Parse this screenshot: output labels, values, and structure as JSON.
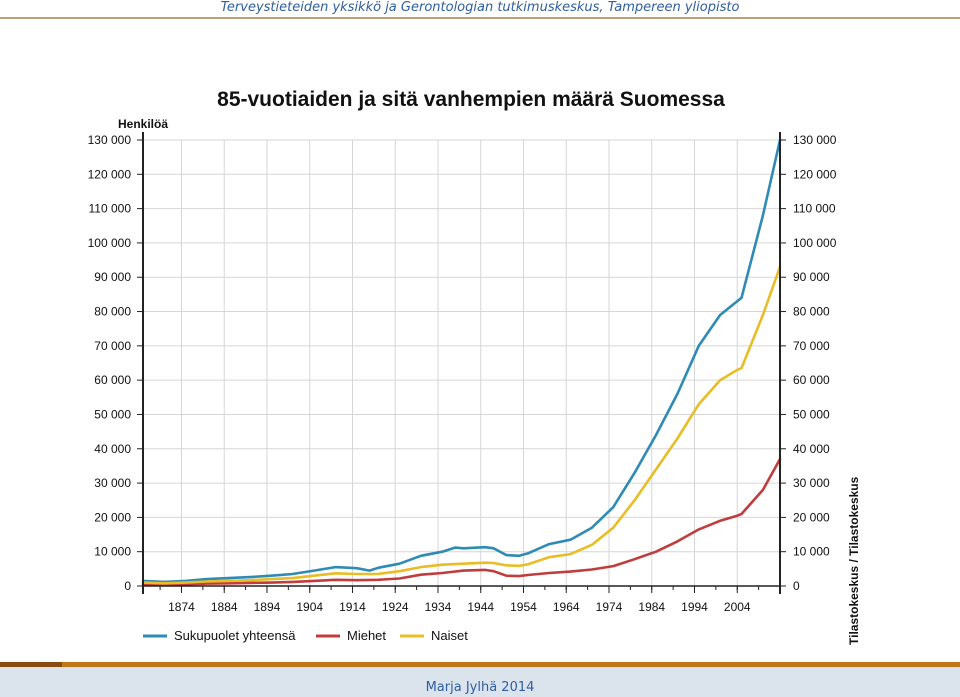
{
  "header": {
    "text": "Terveystieteiden yksikkö ja Gerontologian tutkimuskeskus, Tampereen yliopisto"
  },
  "footer": {
    "author": "Marja Jylhä 2014"
  },
  "colors": {
    "total": "#2e8bb4",
    "men": "#c13c3c",
    "women": "#e8bd25",
    "grid": "#d6d6d6",
    "axis": "#222222",
    "header_text": "#2f5fa0",
    "footer_bar": "#c1761a"
  },
  "chart_data": {
    "type": "line",
    "title": "85-vuotiaiden ja sitä vanhempien määrä Suomessa",
    "ylabel": "Henkilöä",
    "source_label": "Tilastokeskus / Tilastokeskus",
    "ylim": [
      0,
      130000
    ],
    "xlim": [
      1865,
      2014
    ],
    "grid": true,
    "legend_position": "bottom-left",
    "y_ticks": [
      0,
      10000,
      20000,
      30000,
      40000,
      50000,
      60000,
      70000,
      80000,
      90000,
      100000,
      110000,
      120000,
      130000
    ],
    "y_tick_labels": [
      "0",
      "10 000",
      "20 000",
      "30 000",
      "40 000",
      "50 000",
      "60 000",
      "70 000",
      "80 000",
      "90 000",
      "100 000",
      "110 000",
      "120 000",
      "130 000"
    ],
    "x_ticks": [
      1874,
      1884,
      1894,
      1904,
      1914,
      1924,
      1934,
      1944,
      1954,
      1964,
      1974,
      1984,
      1994,
      2004
    ],
    "x_tick_labels": [
      "1874",
      "1884",
      "1894",
      "1904",
      "1914",
      "1924",
      "1934",
      "1944",
      "1954",
      "1964",
      "1974",
      "1984",
      "1994",
      "2004"
    ],
    "series": [
      {
        "name": "Sukupuolet yhteensä",
        "color": "#2e8bb4",
        "x": [
          1865,
          1870,
          1875,
          1880,
          1885,
          1890,
          1895,
          1900,
          1905,
          1910,
          1915,
          1918,
          1920,
          1925,
          1930,
          1935,
          1938,
          1940,
          1945,
          1947,
          1950,
          1953,
          1955,
          1960,
          1965,
          1970,
          1975,
          1980,
          1985,
          1990,
          1995,
          2000,
          2004,
          2005,
          2010,
          2014
        ],
        "values": [
          1500,
          1200,
          1500,
          2000,
          2300,
          2600,
          3000,
          3500,
          4500,
          5500,
          5200,
          4500,
          5300,
          6500,
          8800,
          10000,
          11200,
          11000,
          11300,
          11000,
          9000,
          8800,
          9500,
          12200,
          13500,
          17000,
          23000,
          33000,
          44000,
          56000,
          70000,
          79000,
          83000,
          84000,
          108000,
          130000
        ]
      },
      {
        "name": "Miehet",
        "color": "#c13c3c",
        "x": [
          1865,
          1870,
          1875,
          1880,
          1885,
          1890,
          1895,
          1900,
          1905,
          1910,
          1915,
          1920,
          1925,
          1930,
          1935,
          1940,
          1945,
          1947,
          1950,
          1953,
          1955,
          1960,
          1965,
          1970,
          1975,
          1980,
          1985,
          1990,
          1995,
          2000,
          2004,
          2005,
          2010,
          2014
        ],
        "values": [
          500,
          400,
          500,
          700,
          800,
          900,
          1000,
          1200,
          1500,
          1800,
          1700,
          1800,
          2200,
          3300,
          3800,
          4500,
          4700,
          4300,
          3000,
          2900,
          3200,
          3800,
          4200,
          4800,
          5800,
          7800,
          10000,
          13000,
          16500,
          19000,
          20500,
          21000,
          28000,
          37000
        ]
      },
      {
        "name": "Naiset",
        "color": "#e8bd25",
        "x": [
          1865,
          1870,
          1875,
          1880,
          1885,
          1890,
          1895,
          1900,
          1905,
          1910,
          1915,
          1920,
          1925,
          1930,
          1935,
          1940,
          1945,
          1947,
          1950,
          1953,
          1955,
          1960,
          1965,
          1970,
          1975,
          1980,
          1985,
          1990,
          1995,
          2000,
          2004,
          2005,
          2010,
          2014
        ],
        "values": [
          1000,
          800,
          1000,
          1300,
          1500,
          1700,
          2000,
          2300,
          3000,
          3700,
          3500,
          3500,
          4300,
          5500,
          6200,
          6500,
          6800,
          6700,
          6000,
          5900,
          6300,
          8400,
          9300,
          12000,
          17000,
          25000,
          34000,
          43000,
          53000,
          60000,
          63000,
          63500,
          79000,
          93000
        ]
      }
    ]
  }
}
